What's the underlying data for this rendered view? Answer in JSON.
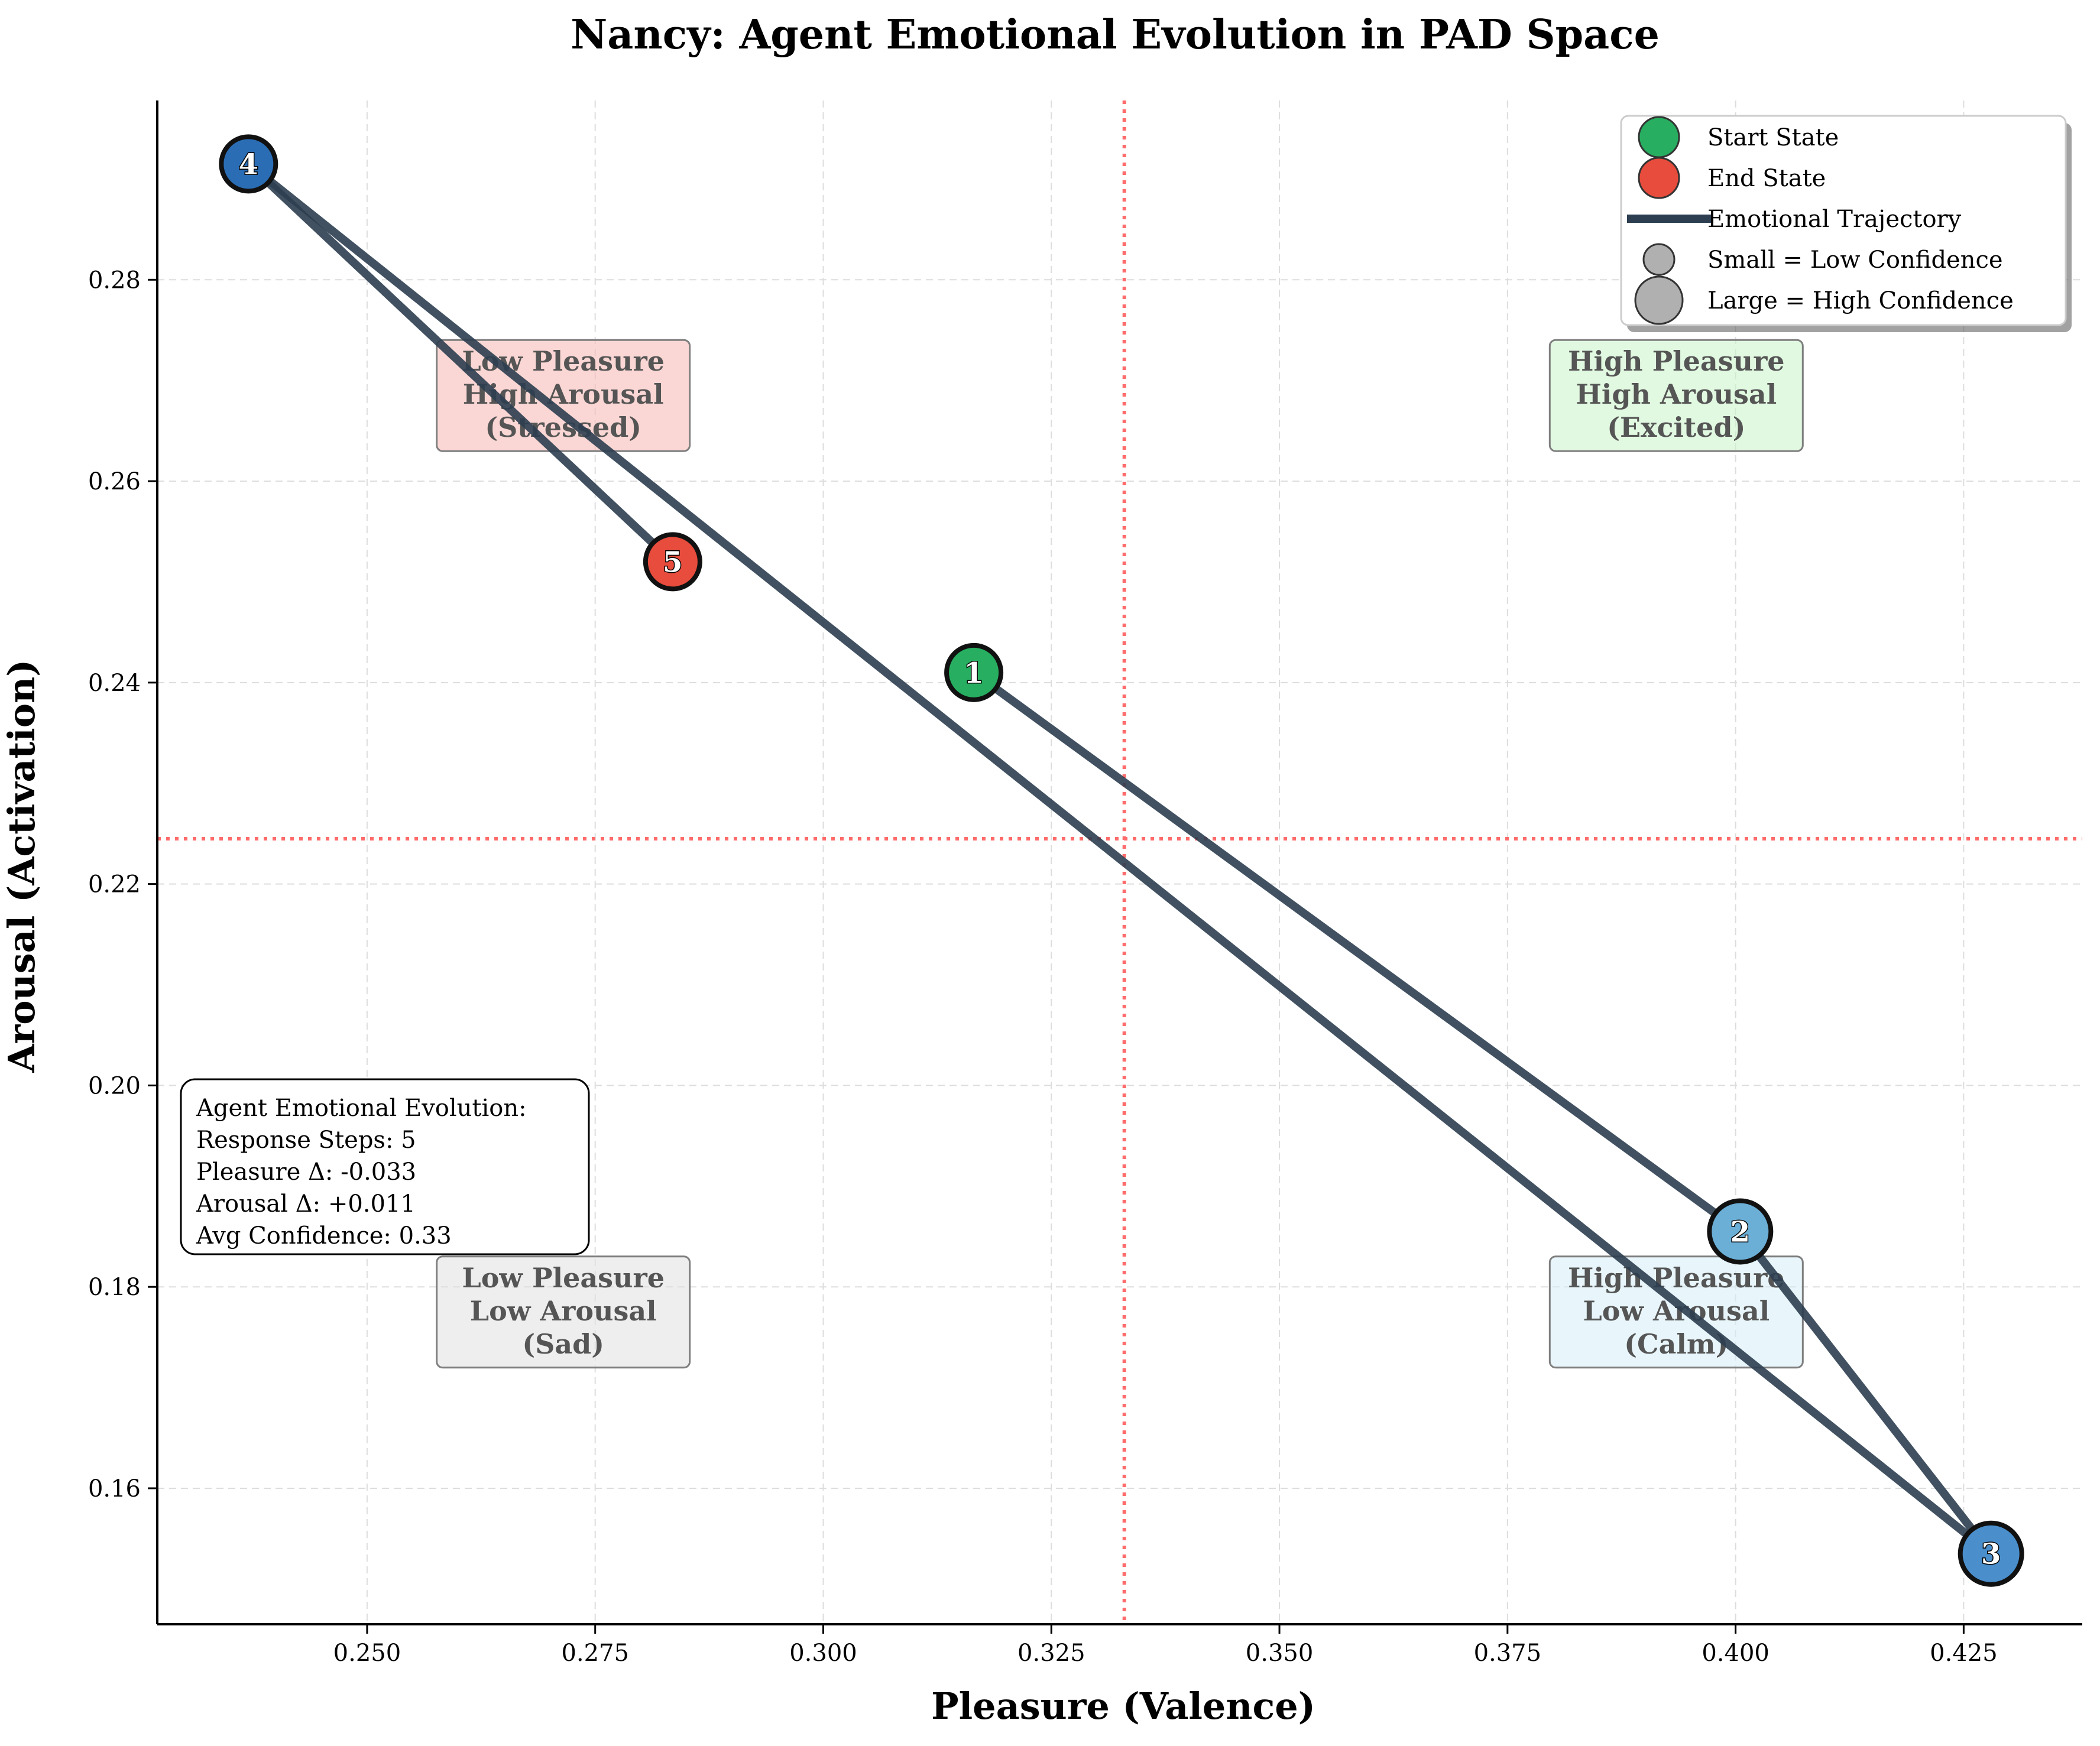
{
  "chart_data": {
    "type": "scatter",
    "title": "Nancy: Agent Emotional Evolution in PAD Space",
    "xlabel": "Pleasure (Valence)",
    "ylabel": "Arousal (Activation)",
    "xlim": [
      0.227,
      0.438
    ],
    "ylim": [
      0.1465,
      0.2978
    ],
    "xticks": [
      0.25,
      0.275,
      0.3,
      0.325,
      0.35,
      0.375,
      0.4,
      0.425
    ],
    "xtick_labels": [
      "0.250",
      "0.275",
      "0.300",
      "0.325",
      "0.350",
      "0.375",
      "0.400",
      "0.425"
    ],
    "yticks": [
      0.16,
      0.18,
      0.2,
      0.22,
      0.24,
      0.26,
      0.28
    ],
    "ytick_labels": [
      "0.16",
      "0.18",
      "0.20",
      "0.22",
      "0.24",
      "0.26",
      "0.28"
    ],
    "grid": true,
    "reference_lines": {
      "x": 0.333,
      "y": 0.2245,
      "color": "#ff6b6b",
      "style": "dotted"
    },
    "trajectory_color": "#2c3e50",
    "points": [
      {
        "step": "1",
        "x": 0.3165,
        "y": 0.241,
        "color": "#27ae60",
        "role": "start",
        "confidence": "medium"
      },
      {
        "step": "2",
        "x": 0.4005,
        "y": 0.1855,
        "color": "#6baed6",
        "role": "mid",
        "confidence": "high"
      },
      {
        "step": "3",
        "x": 0.428,
        "y": 0.1535,
        "color": "#4a8fcc",
        "role": "mid",
        "confidence": "high"
      },
      {
        "step": "4",
        "x": 0.237,
        "y": 0.2915,
        "color": "#2a6db5",
        "role": "mid",
        "confidence": "medium"
      },
      {
        "step": "5",
        "x": 0.2835,
        "y": 0.252,
        "color": "#e74c3c",
        "role": "end",
        "confidence": "medium"
      }
    ],
    "quadrant_labels": [
      {
        "line1": "Low Pleasure",
        "line2": "High Arousal",
        "line3": "(Stressed)",
        "x": 0.2715,
        "y": 0.2685,
        "fill": "#f5b7b1"
      },
      {
        "line1": "High Pleasure",
        "line2": "High Arousal",
        "line3": "(Excited)",
        "x": 0.3935,
        "y": 0.2685,
        "fill": "#c8f2c8"
      },
      {
        "line1": "Low Pleasure",
        "line2": "Low Arousal",
        "line3": "(Sad)",
        "x": 0.2715,
        "y": 0.1775,
        "fill": "#e0e0e0"
      },
      {
        "line1": "High Pleasure",
        "line2": "Low Arousal",
        "line3": "(Calm)",
        "x": 0.3935,
        "y": 0.1775,
        "fill": "#d6eef7"
      }
    ],
    "legend": {
      "placement": "top-right",
      "entries": [
        {
          "label": "Start State",
          "kind": "marker",
          "color": "#27ae60",
          "size": "normal"
        },
        {
          "label": "End State",
          "kind": "marker",
          "color": "#e74c3c",
          "size": "normal"
        },
        {
          "label": "Emotional Trajectory",
          "kind": "line",
          "color": "#2c3e50"
        },
        {
          "label": "Small = Low Confidence",
          "kind": "marker",
          "color": "#b0b0b0",
          "size": "small"
        },
        {
          "label": "Large = High Confidence",
          "kind": "marker",
          "color": "#b0b0b0",
          "size": "large"
        }
      ]
    },
    "stats_box": {
      "lines": [
        "Agent Emotional Evolution:",
        "Response Steps: 5",
        "Pleasure Δ: -0.033",
        "Arousal Δ: +0.011",
        "Avg Confidence: 0.33"
      ]
    }
  }
}
